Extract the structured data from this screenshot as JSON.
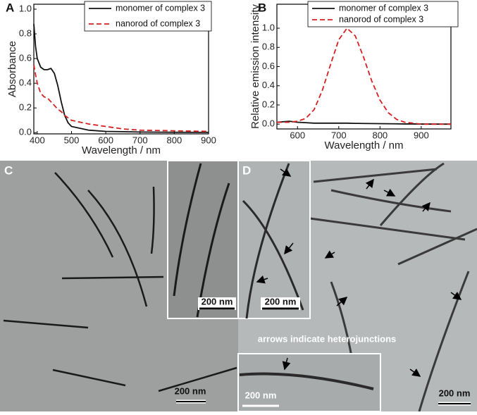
{
  "chart_data": [
    {
      "type": "line",
      "panel_label": "A",
      "xlabel": "Wavelength / nm",
      "ylabel": "Absorbance",
      "xlim": [
        390,
        900
      ],
      "ylim": [
        -0.01,
        1.04
      ],
      "xticks": [
        400,
        500,
        600,
        700,
        800,
        900
      ],
      "yticks": [
        {
          "value": 0,
          "label": "0.0"
        },
        0.2,
        0.4,
        0.6,
        0.8,
        {
          "value": 1,
          "label": "1.0"
        }
      ],
      "x": [
        390,
        395,
        400,
        410,
        420,
        430,
        440,
        450,
        460,
        470,
        480,
        490,
        500,
        550,
        600,
        650,
        700,
        800,
        900
      ],
      "series": [
        {
          "name": "monomer of complex 3",
          "color": "#111111",
          "dash": false,
          "values": [
            0.88,
            0.7,
            0.6,
            0.53,
            0.51,
            0.51,
            0.52,
            0.48,
            0.38,
            0.25,
            0.14,
            0.08,
            0.05,
            0.02,
            0.01,
            0.008,
            0.005,
            0.003,
            0.002
          ]
        },
        {
          "name": "nanorod of complex 3",
          "color": "#d42020",
          "dash": true,
          "values": [
            0.55,
            0.47,
            0.4,
            0.32,
            0.29,
            0.28,
            0.25,
            0.22,
            0.19,
            0.17,
            0.14,
            0.12,
            0.1,
            0.07,
            0.05,
            0.03,
            0.02,
            0.015,
            0.01
          ]
        }
      ]
    },
    {
      "type": "line",
      "panel_label": "B",
      "xlabel": "Wavelength / nm",
      "ylabel": "Relative emission intensity",
      "xlim": [
        550,
        972
      ],
      "ylim": [
        -0.05,
        1.25
      ],
      "xticks": [
        600,
        700,
        800,
        900
      ],
      "yticks": [
        {
          "value": 0,
          "label": "0.0"
        },
        0.2,
        0.4,
        0.6,
        0.8,
        {
          "value": 1,
          "label": "1.0"
        }
      ],
      "x": [
        550,
        580,
        600,
        620,
        640,
        660,
        680,
        700,
        720,
        740,
        760,
        780,
        800,
        820,
        840,
        860,
        880,
        900,
        972
      ],
      "series": [
        {
          "name": "monomer of complex 3",
          "color": "#111111",
          "dash": false,
          "values": [
            0.02,
            0.03,
            0.02,
            0.015,
            0.01,
            0.01,
            0.01,
            0.01,
            0.01,
            0.008,
            0.007,
            0.006,
            0.005,
            0.004,
            0.003,
            0.002,
            0.002,
            0.001,
            0
          ]
        },
        {
          "name": "nanorod of complex 3",
          "color": "#d42020",
          "dash": true,
          "values": [
            0.02,
            0.02,
            0.03,
            0.06,
            0.15,
            0.35,
            0.62,
            0.88,
            1.0,
            0.92,
            0.7,
            0.45,
            0.25,
            0.12,
            0.05,
            0.02,
            0.01,
            0,
            0
          ]
        }
      ]
    }
  ],
  "micrographs": {
    "C": {
      "label": "C",
      "scale_main": "200 nm",
      "scale_inset": "200 nm"
    },
    "D": {
      "label": "D",
      "scale_main": "200 nm",
      "scale_inset_top": "200 nm",
      "scale_inset_bottom": "200 nm",
      "note": "arrows indicate heterojunctions"
    }
  }
}
